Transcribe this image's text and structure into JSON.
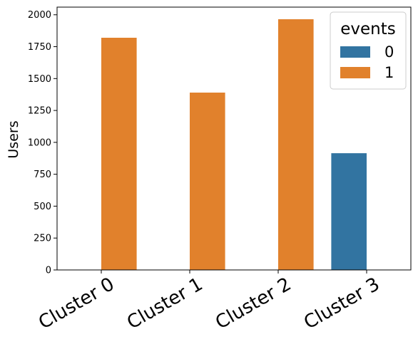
{
  "chart_data": {
    "type": "bar",
    "categories": [
      "Cluster 0",
      "Cluster 1",
      "Cluster 2",
      "Cluster 3"
    ],
    "series": [
      {
        "name": "0",
        "color": "#3274a1",
        "values": [
          0,
          0,
          0,
          915
        ]
      },
      {
        "name": "1",
        "color": "#e1812c",
        "values": [
          1820,
          1390,
          1965,
          0
        ]
      }
    ],
    "xlabel": "",
    "ylabel": "Users",
    "ylim": [
      0,
      2060
    ],
    "yticks": [
      0,
      250,
      500,
      750,
      1000,
      1250,
      1500,
      1750,
      2000
    ],
    "legend": {
      "title": "events",
      "placement": "top-right"
    },
    "grid": false
  }
}
